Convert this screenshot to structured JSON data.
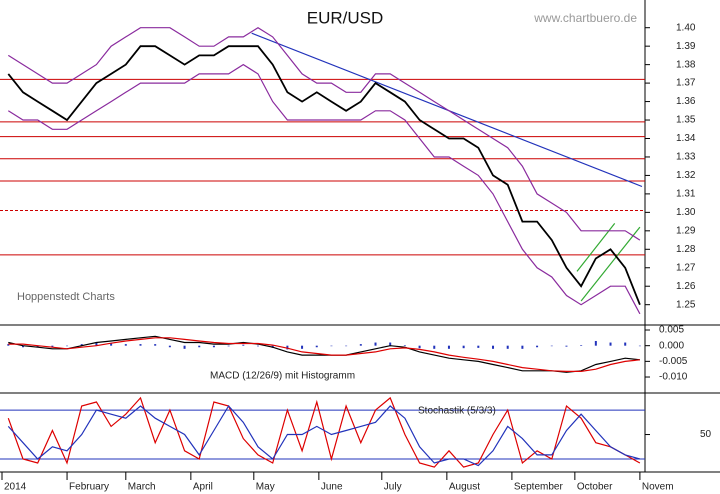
{
  "chart_data": [
    {
      "type": "line",
      "title": "EUR/USD",
      "subtitle": "www.chartbuero.de",
      "annotation": "Hoppenstedt Charts",
      "xlim": [
        0,
        305
      ],
      "x": [
        3,
        10,
        17,
        24,
        31,
        38,
        45,
        52,
        59,
        66,
        73,
        80,
        87,
        94,
        101,
        108,
        115,
        122,
        129,
        136,
        143,
        150,
        157,
        164,
        171,
        178,
        185,
        192,
        199,
        206,
        213,
        220,
        227,
        234,
        241,
        248,
        255,
        262,
        269,
        276,
        283,
        290,
        297,
        304
      ],
      "series": [
        {
          "color": "#000000",
          "values": [
            1.375,
            1.365,
            1.36,
            1.355,
            1.35,
            1.36,
            1.37,
            1.375,
            1.38,
            1.39,
            1.39,
            1.385,
            1.38,
            1.385,
            1.385,
            1.39,
            1.39,
            1.39,
            1.38,
            1.365,
            1.36,
            1.365,
            1.36,
            1.355,
            1.36,
            1.37,
            1.365,
            1.36,
            1.35,
            1.345,
            1.34,
            1.34,
            1.335,
            1.32,
            1.315,
            1.295,
            1.295,
            1.285,
            1.27,
            1.26,
            1.275,
            1.28,
            1.27,
            1.25
          ]
        },
        {
          "color": "#8a2b9e",
          "values": [
            1.385,
            1.38,
            1.375,
            1.37,
            1.37,
            1.375,
            1.38,
            1.39,
            1.395,
            1.4,
            1.4,
            1.4,
            1.395,
            1.39,
            1.39,
            1.395,
            1.395,
            1.4,
            1.395,
            1.385,
            1.375,
            1.37,
            1.37,
            1.365,
            1.365,
            1.375,
            1.375,
            1.37,
            1.365,
            1.36,
            1.355,
            1.35,
            1.345,
            1.34,
            1.335,
            1.325,
            1.31,
            1.305,
            1.3,
            1.29,
            1.29,
            1.29,
            1.29,
            1.285
          ]
        },
        {
          "color": "#8a2b9e",
          "values": [
            1.355,
            1.35,
            1.35,
            1.345,
            1.345,
            1.35,
            1.355,
            1.36,
            1.365,
            1.37,
            1.37,
            1.37,
            1.37,
            1.375,
            1.375,
            1.375,
            1.38,
            1.375,
            1.36,
            1.35,
            1.35,
            1.35,
            1.35,
            1.35,
            1.35,
            1.355,
            1.355,
            1.35,
            1.34,
            1.33,
            1.33,
            1.325,
            1.32,
            1.31,
            1.295,
            1.28,
            1.27,
            1.265,
            1.255,
            1.25,
            1.255,
            1.26,
            1.26,
            1.245
          ]
        }
      ],
      "ylim": [
        1.239,
        1.415
      ],
      "yticks": [
        1.25,
        1.26,
        1.27,
        1.28,
        1.29,
        {
          "value": 1.3,
          "label": "1.30"
        },
        1.31,
        1.32,
        1.33,
        1.34,
        1.35,
        1.36,
        1.37,
        1.38,
        1.39,
        {
          "value": 1.4,
          "label": "1.40"
        }
      ],
      "hlines": {
        "color": "#cc0000",
        "values": [
          1.372,
          1.349,
          1.341,
          1.329,
          1.317,
          1.277
        ]
      },
      "dashed_hlines": {
        "color": "#cc0000",
        "values": [
          1.301
        ]
      },
      "trendline": {
        "color": "#2233bb",
        "x": [
          119,
          305
        ],
        "values": [
          1.397,
          1.314
        ]
      },
      "channel": {
        "color": "#33aa33",
        "lines": [
          {
            "x": [
              276,
              304
            ],
            "values": [
              1.252,
              1.292
            ]
          },
          {
            "x": [
              274,
              292
            ],
            "values": [
              1.268,
              1.294
            ]
          }
        ]
      }
    },
    {
      "type": "macd",
      "annotation": "MACD (12/26/9) mit Histogramm",
      "series": [
        {
          "color": "#000000",
          "values": [
            0.001,
            0.0,
            -0.0005,
            -0.001,
            -0.001,
            0.0,
            0.001,
            0.0015,
            0.002,
            0.0025,
            0.003,
            0.002,
            0.001,
            0.001,
            0.0005,
            0.0005,
            0.001,
            0.0005,
            -0.0005,
            -0.002,
            -0.003,
            -0.003,
            -0.003,
            -0.003,
            -0.002,
            -0.001,
            0.0,
            -0.0005,
            -0.002,
            -0.003,
            -0.004,
            -0.0045,
            -0.005,
            -0.006,
            -0.007,
            -0.008,
            -0.008,
            -0.008,
            -0.0085,
            -0.008,
            -0.006,
            -0.005,
            -0.004,
            -0.0045
          ]
        },
        {
          "color": "#dd0000",
          "values": [
            0.0005,
            0.0005,
            0.0,
            -0.0005,
            -0.001,
            -0.0005,
            0.0,
            0.0008,
            0.0015,
            0.002,
            0.0025,
            0.0025,
            0.002,
            0.0015,
            0.001,
            0.0007,
            0.0007,
            0.0007,
            0.0002,
            -0.0008,
            -0.002,
            -0.0025,
            -0.003,
            -0.003,
            -0.0025,
            -0.002,
            -0.001,
            -0.0007,
            -0.0012,
            -0.002,
            -0.003,
            -0.0037,
            -0.0043,
            -0.005,
            -0.006,
            -0.007,
            -0.0075,
            -0.008,
            -0.0082,
            -0.0082,
            -0.0075,
            -0.006,
            -0.005,
            -0.0045
          ]
        }
      ],
      "histogram": {
        "color": "#2233bb",
        "values": [
          0.0005,
          -0.0005,
          -0.0005,
          -0.0005,
          0.0,
          0.0005,
          0.001,
          0.0007,
          0.0005,
          0.0005,
          0.0005,
          -0.0005,
          -0.001,
          -0.0005,
          -0.0005,
          -0.0002,
          0.0003,
          -0.0002,
          -0.0007,
          -0.0012,
          -0.001,
          -0.0005,
          0.0,
          0.0,
          0.0005,
          0.001,
          0.001,
          0.0002,
          -0.0008,
          -0.001,
          -0.001,
          -0.0008,
          -0.0007,
          -0.001,
          -0.001,
          -0.001,
          -0.0005,
          0.0,
          -0.0003,
          0.0002,
          0.0015,
          0.001,
          0.001,
          0.0
        ]
      },
      "ylim": [
        -0.0151,
        0.0066
      ],
      "yticks": [
        0.005,
        {
          "value": 0.0,
          "label": "0.000"
        },
        -0.005,
        {
          "value": -0.01,
          "label": "-0.010"
        }
      ]
    },
    {
      "type": "stochastic",
      "annotation": "Stochastik (5/3/3)",
      "series": [
        {
          "color": "#dd0000",
          "values": [
            70,
            20,
            15,
            55,
            15,
            85,
            90,
            60,
            75,
            95,
            40,
            80,
            30,
            20,
            90,
            85,
            45,
            25,
            15,
            80,
            30,
            90,
            20,
            85,
            40,
            80,
            95,
            50,
            15,
            10,
            30,
            10,
            15,
            50,
            80,
            15,
            30,
            20,
            85,
            70,
            40,
            35,
            25,
            15
          ]
        },
        {
          "color": "#2233bb",
          "values": [
            60,
            40,
            20,
            35,
            30,
            50,
            80,
            75,
            70,
            85,
            70,
            60,
            50,
            25,
            55,
            85,
            65,
            35,
            20,
            50,
            50,
            60,
            50,
            55,
            60,
            65,
            85,
            70,
            35,
            15,
            20,
            20,
            12,
            30,
            60,
            45,
            25,
            25,
            55,
            75,
            55,
            35,
            25,
            20
          ]
        }
      ],
      "ylim": [
        4,
        101
      ],
      "yticks": [
        50
      ],
      "levels": {
        "color": "#2233bb",
        "values": [
          20,
          80
        ]
      },
      "xticks": [
        {
          "value": 0,
          "label": "2014"
        },
        {
          "value": 31,
          "label": "February"
        },
        {
          "value": 59,
          "label": "March"
        },
        {
          "value": 90,
          "label": "April"
        },
        {
          "value": 120,
          "label": "May"
        },
        {
          "value": 151,
          "label": "June"
        },
        {
          "value": 181,
          "label": "July"
        },
        {
          "value": 212,
          "label": "August"
        },
        {
          "value": 243,
          "label": "September"
        },
        {
          "value": 273,
          "label": "October"
        },
        {
          "value": 304,
          "label": "Novem"
        }
      ]
    }
  ]
}
